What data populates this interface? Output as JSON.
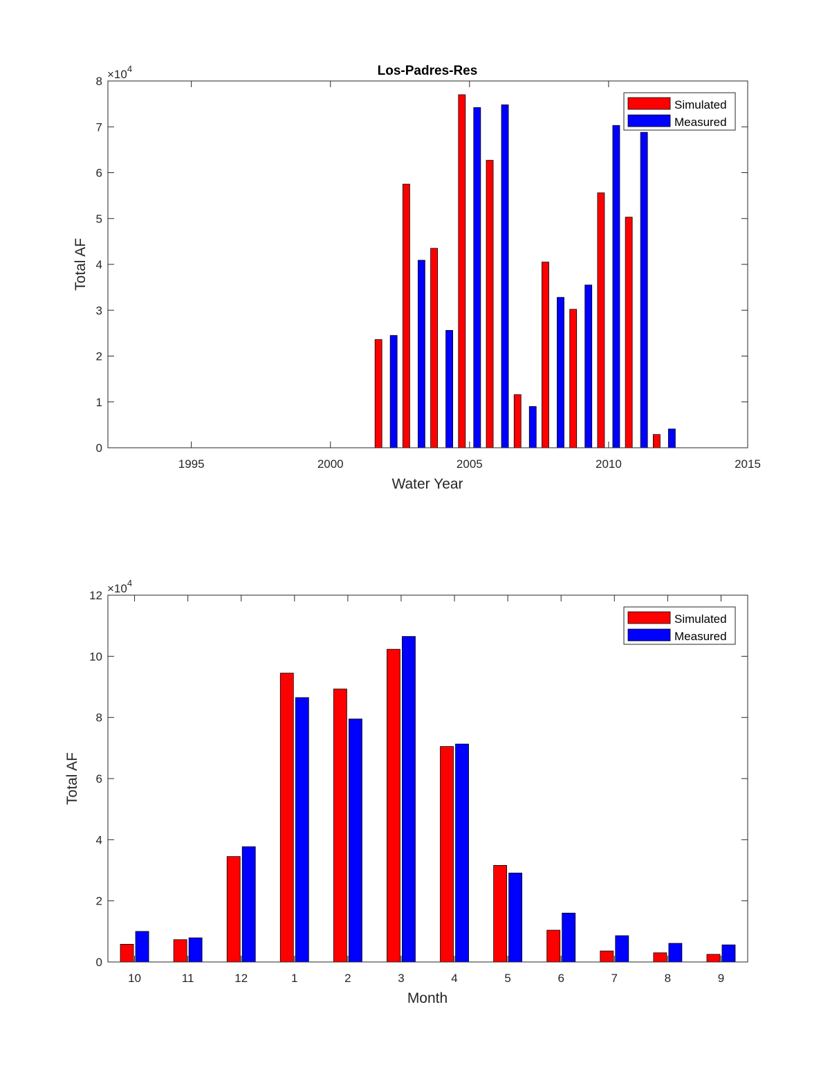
{
  "chart_data": [
    {
      "type": "bar",
      "title": "Los-Padres-Res",
      "xlabel": "Water Year",
      "ylabel": "Total AF",
      "exponent_label": "×10",
      "exponent_power": "4",
      "y_scale": 10000,
      "xlim": [
        1992,
        2015
      ],
      "ylim": [
        0,
        8
      ],
      "x_ticks": [
        1995,
        2000,
        2005,
        2010,
        2015
      ],
      "x_tick_labels": [
        "1995",
        "2000",
        "2005",
        "2010",
        "2015"
      ],
      "y_ticks": [
        0,
        1,
        2,
        3,
        4,
        5,
        6,
        7,
        8
      ],
      "y_tick_labels": [
        "0",
        "1",
        "2",
        "3",
        "4",
        "5",
        "6",
        "7",
        "8"
      ],
      "legend_position": "top-right",
      "grid": false,
      "x": [
        2002,
        2003,
        2004,
        2005,
        2006,
        2007,
        2008,
        2009,
        2010,
        2011,
        2012
      ],
      "series": [
        {
          "name": "Simulated",
          "color": "#ff0000",
          "values": [
            23600,
            57500,
            43500,
            77000,
            62700,
            11600,
            40500,
            30200,
            55600,
            50300,
            2900
          ]
        },
        {
          "name": "Measured",
          "color": "#0000ff",
          "values": [
            24500,
            40900,
            25600,
            74200,
            74800,
            9000,
            32800,
            35500,
            70300,
            68800,
            4100
          ]
        }
      ]
    },
    {
      "type": "bar",
      "title": "",
      "xlabel": "Month",
      "ylabel": "Total AF",
      "exponent_label": "×10",
      "exponent_power": "4",
      "y_scale": 10000,
      "ylim": [
        0,
        12
      ],
      "categories": [
        "10",
        "11",
        "12",
        "1",
        "2",
        "3",
        "4",
        "5",
        "6",
        "7",
        "8",
        "9"
      ],
      "y_ticks": [
        0,
        2,
        4,
        6,
        8,
        10,
        12
      ],
      "y_tick_labels": [
        "0",
        "2",
        "4",
        "6",
        "8",
        "10",
        "12"
      ],
      "legend_position": "top-right",
      "grid": false,
      "series": [
        {
          "name": "Simulated",
          "color": "#ff0000",
          "values": [
            5800,
            7300,
            34500,
            94500,
            89300,
            102300,
            70500,
            31600,
            10400,
            3600,
            3000,
            2500
          ]
        },
        {
          "name": "Measured",
          "color": "#0000ff",
          "values": [
            10000,
            7900,
            37700,
            86500,
            79500,
            106500,
            71300,
            29100,
            16000,
            8600,
            6100,
            5600
          ]
        }
      ]
    }
  ]
}
